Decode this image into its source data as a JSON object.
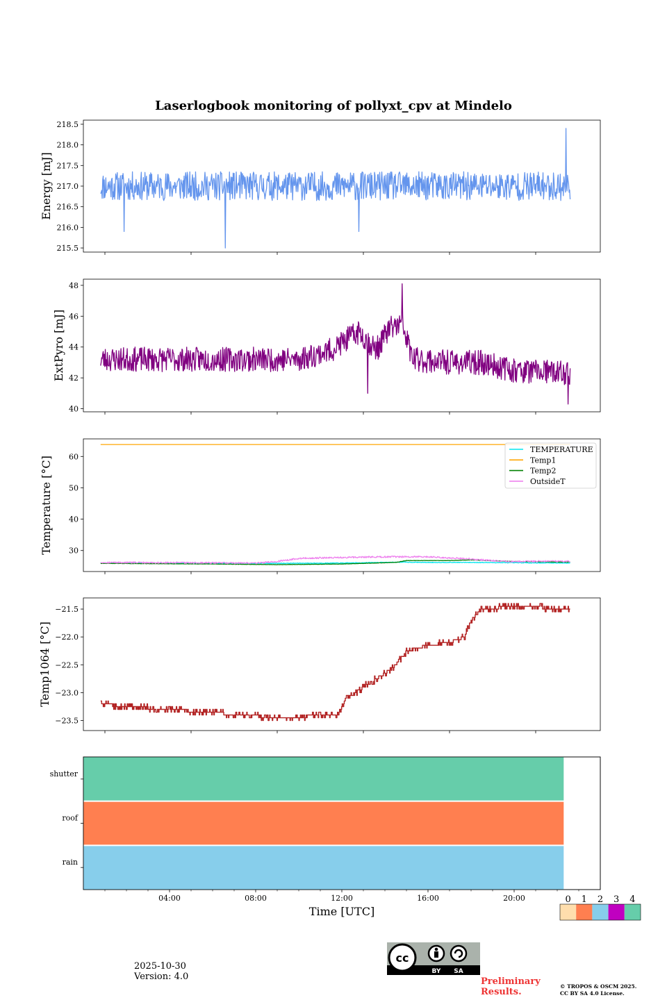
{
  "title": "Laserlogbook monitoring of pollyxt_cpv at Mindelo",
  "date": "2025-10-30",
  "version": "Version: 4.0",
  "preliminary": "Preliminary Results.",
  "copyright_line1": "© TROPOS & OSCM 2025.",
  "copyright_line2": "CC BY SA 4.0 License.",
  "license_badge": {
    "cc": "cc",
    "by": "BY",
    "sa": "SA"
  },
  "chart_data": [
    {
      "type": "line",
      "ylabel": "Energy [mJ]",
      "ylim": [
        215.4,
        218.6
      ],
      "yticks": [
        215.5,
        216.0,
        216.5,
        217.0,
        217.5,
        218.0,
        218.5
      ],
      "ytick_labels": [
        "215.5",
        "216.0",
        "216.5",
        "217.0",
        "217.5",
        "218.0",
        "218.5"
      ],
      "series": [
        {
          "name": "Energy",
          "color": "#6495ed",
          "x": [
            0.8,
            22.6
          ],
          "baseline": 217.0,
          "noise": 0.35,
          "seed": 11,
          "spikes": [
            [
              6.6,
              215.5
            ],
            [
              22.4,
              218.4
            ],
            [
              1.9,
              215.9
            ],
            [
              12.8,
              215.9
            ]
          ]
        }
      ]
    },
    {
      "type": "line",
      "ylabel": "ExtPyro [mJ]",
      "ylim": [
        39.8,
        48.4
      ],
      "yticks": [
        40,
        42,
        44,
        46,
        48
      ],
      "ytick_labels": [
        "40",
        "42",
        "44",
        "46",
        "48"
      ],
      "series": [
        {
          "name": "ExtPyro",
          "color": "#800080",
          "x": [
            0.8,
            22.6
          ],
          "trend": [
            [
              0.8,
              43.2
            ],
            [
              10.0,
              43.2
            ],
            [
              11.5,
              43.8
            ],
            [
              12.8,
              45.0
            ],
            [
              13.6,
              43.8
            ],
            [
              14.2,
              45.2
            ],
            [
              14.8,
              45.5
            ],
            [
              15.3,
              43.2
            ],
            [
              17.0,
              43.0
            ],
            [
              18.5,
              43.0
            ],
            [
              20.0,
              42.5
            ],
            [
              22.6,
              42.3
            ]
          ],
          "noise": 0.8,
          "seed": 23,
          "spikes": [
            [
              14.8,
              48.1
            ],
            [
              13.2,
              41.0
            ],
            [
              22.5,
              40.3
            ]
          ]
        }
      ]
    },
    {
      "type": "line",
      "ylabel": "Temperature [°C]",
      "ylim": [
        23.3,
        65.6
      ],
      "yticks": [
        30,
        40,
        50,
        60
      ],
      "ytick_labels": [
        "30",
        "40",
        "50",
        "60"
      ],
      "legend": "top-right",
      "series": [
        {
          "name": "TEMPERATURE",
          "color": "#00e5ee",
          "points": [
            [
              0.8,
              26.0
            ],
            [
              8.0,
              25.9
            ],
            [
              12.0,
              26.0
            ],
            [
              14.8,
              26.3
            ],
            [
              16.0,
              26.2
            ],
            [
              18.0,
              26.2
            ],
            [
              20.0,
              26.1
            ],
            [
              22.6,
              26.0
            ]
          ],
          "noise": 0.1
        },
        {
          "name": "Temp1",
          "color": "#ffa500",
          "points": [
            [
              0.8,
              63.8
            ],
            [
              22.6,
              63.8
            ]
          ],
          "noise": 0
        },
        {
          "name": "Temp2",
          "color": "#008000",
          "points": [
            [
              0.8,
              25.9
            ],
            [
              6.0,
              25.7
            ],
            [
              9.0,
              25.5
            ],
            [
              12.0,
              25.7
            ],
            [
              14.5,
              26.2
            ],
            [
              15.0,
              26.8
            ],
            [
              17.0,
              26.8
            ],
            [
              18.0,
              27.0
            ],
            [
              20.0,
              26.5
            ],
            [
              22.6,
              26.3
            ]
          ],
          "noise": 0.05
        },
        {
          "name": "OutsideT",
          "color": "#ee82ee",
          "points": [
            [
              0.8,
              26.2
            ],
            [
              8.0,
              26.0
            ],
            [
              9.0,
              26.5
            ],
            [
              10.0,
              27.5
            ],
            [
              12.0,
              27.8
            ],
            [
              14.0,
              28.0
            ],
            [
              16.0,
              28.0
            ],
            [
              18.0,
              27.3
            ],
            [
              19.5,
              26.5
            ],
            [
              22.6,
              26.6
            ]
          ],
          "noise": 0.25
        }
      ]
    },
    {
      "type": "line",
      "ylabel": "Temp1064 [°C]",
      "ylim": [
        -23.68,
        -21.3
      ],
      "yticks": [
        -23.5,
        -23.0,
        -22.5,
        -22.0,
        -21.5
      ],
      "ytick_labels": [
        "−23.5",
        "−23.0",
        "−22.5",
        "−22.0",
        "−21.5"
      ],
      "series": [
        {
          "name": "Temp1064",
          "color": "#b22222",
          "x": [
            0.8,
            22.6
          ],
          "steps": [
            [
              0.8,
              -23.2
            ],
            [
              2.0,
              -23.25
            ],
            [
              4.0,
              -23.3
            ],
            [
              5.5,
              -23.35
            ],
            [
              7.5,
              -23.4
            ],
            [
              9.0,
              -23.45
            ],
            [
              11.8,
              -23.4
            ],
            [
              12.2,
              -23.1
            ],
            [
              13.0,
              -22.9
            ],
            [
              13.8,
              -22.7
            ],
            [
              14.5,
              -22.5
            ],
            [
              15.0,
              -22.25
            ],
            [
              16.0,
              -22.15
            ],
            [
              17.0,
              -22.1
            ],
            [
              17.7,
              -22.0
            ],
            [
              18.0,
              -21.7
            ],
            [
              18.5,
              -21.5
            ],
            [
              20.0,
              -21.45
            ],
            [
              22.6,
              -21.5
            ]
          ],
          "quant": 0.05,
          "seed": 5
        }
      ]
    },
    {
      "type": "heatmap",
      "rows": [
        "shutter",
        "roof",
        "rain"
      ],
      "row_values": [
        4,
        1,
        2
      ],
      "x_range": [
        0,
        22.3
      ],
      "xlim": [
        0,
        24
      ],
      "xticks": [
        4,
        8,
        12,
        16,
        20
      ],
      "xtick_labels": [
        "04:00",
        "08:00",
        "12:00",
        "16:00",
        "20:00"
      ],
      "xlabel": "Time [UTC]",
      "colorbar": {
        "labels": [
          "0",
          "1",
          "2",
          "3",
          "4"
        ],
        "colors": [
          "#ffdead",
          "#ff7f50",
          "#87ceeb",
          "#c000c0",
          "#66cdaa"
        ]
      }
    }
  ]
}
